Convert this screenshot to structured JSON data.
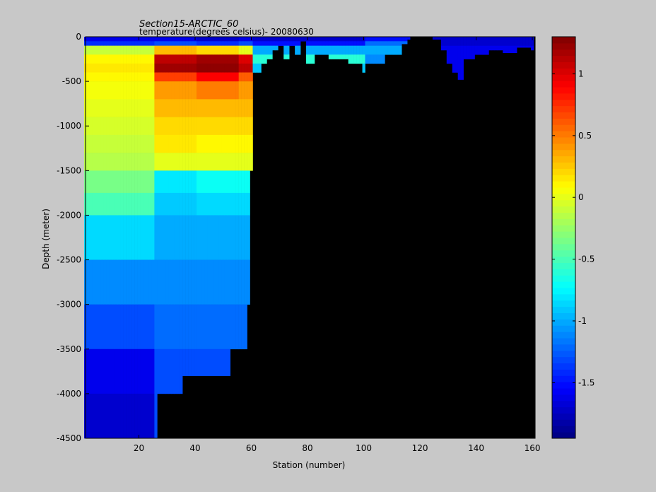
{
  "chart_data": {
    "type": "heatmap",
    "title": "Section15-ARCTIC_60",
    "subtitle": "temperature(degrees  celsius)- 20080630",
    "xlabel": "Station (number)",
    "ylabel": "Depth (meter)",
    "xlim": [
      1,
      161
    ],
    "ylim": [
      -4500,
      0
    ],
    "xticks": [
      20,
      40,
      60,
      80,
      100,
      120,
      140,
      160
    ],
    "yticks": [
      0,
      -500,
      -1000,
      -1500,
      -2000,
      -2500,
      -3000,
      -3500,
      -4000,
      -4500
    ],
    "colorbar": {
      "clim": [
        -1.95,
        1.3
      ],
      "ticks": [
        1,
        0.5,
        0,
        -0.5,
        -1,
        -1.5
      ],
      "colormap": "jet"
    },
    "seafloor_color": "#000000",
    "depth_levels": [
      -50,
      -100,
      -200,
      -300,
      -400,
      -500,
      -700,
      -900,
      -1100,
      -1300,
      -1500,
      -1750,
      -2000,
      -2500,
      -3000,
      -3500,
      -4000,
      -4500
    ],
    "bottom_depth": [
      [
        1,
        -4500
      ],
      [
        26,
        -4500
      ],
      [
        27,
        -4000
      ],
      [
        35,
        -4000
      ],
      [
        36,
        -3800
      ],
      [
        52,
        -3800
      ],
      [
        53,
        -3500
      ],
      [
        58,
        -3500
      ],
      [
        59,
        -3000
      ],
      [
        60,
        -1500
      ],
      [
        61,
        -400
      ],
      [
        64,
        -300
      ],
      [
        66,
        -250
      ],
      [
        68,
        -150
      ],
      [
        70,
        -100
      ],
      [
        72,
        -250
      ],
      [
        74,
        -100
      ],
      [
        76,
        -200
      ],
      [
        78,
        -50
      ],
      [
        80,
        -300
      ],
      [
        83,
        -200
      ],
      [
        88,
        -250
      ],
      [
        95,
        -300
      ],
      [
        100,
        -400
      ],
      [
        104,
        -350
      ],
      [
        108,
        -200
      ],
      [
        114,
        -80
      ],
      [
        116,
        -30
      ],
      [
        125,
        -30
      ],
      [
        128,
        -150
      ],
      [
        130,
        -300
      ],
      [
        132,
        -400
      ],
      [
        134,
        -480
      ],
      [
        136,
        -250
      ],
      [
        140,
        -200
      ],
      [
        145,
        -150
      ],
      [
        150,
        -180
      ],
      [
        155,
        -120
      ],
      [
        160,
        -150
      ]
    ],
    "temperature_profiles": [
      {
        "stations": [
          1,
          25
        ],
        "values": [
          -1.6,
          -1.4,
          -0.1,
          0.1,
          0.15,
          0.1,
          0.05,
          0.0,
          -0.05,
          -0.1,
          -0.15,
          -0.35,
          -0.5,
          -0.85,
          -1.1,
          -1.3,
          -1.6,
          -1.7
        ]
      },
      {
        "stations": [
          26,
          40
        ],
        "values": [
          -1.6,
          -1.3,
          0.3,
          1.1,
          1.2,
          0.7,
          0.4,
          0.3,
          0.2,
          0.15,
          0.0,
          -0.8,
          -0.9,
          -1.0,
          -1.1,
          -1.2,
          -1.3,
          -1.3
        ]
      },
      {
        "stations": [
          41,
          55
        ],
        "values": [
          -1.7,
          -1.4,
          0.2,
          1.2,
          1.25,
          0.9,
          0.5,
          0.3,
          0.2,
          0.1,
          0.0,
          -0.7,
          -0.85,
          -1.0,
          -1.1,
          -1.2,
          -1.3,
          -1.3
        ]
      },
      {
        "stations": [
          56,
          60
        ],
        "values": [
          -1.6,
          -1.3,
          0.0,
          1.0,
          1.1,
          0.6,
          0.4,
          0.3,
          0.2,
          0.1,
          0.0,
          -0.7,
          -0.85,
          -1.0,
          -1.1,
          -1.2,
          -1.3,
          -1.3
        ]
      },
      {
        "stations": [
          61,
          100
        ],
        "values": [
          -1.7,
          -1.5,
          -1.0,
          -0.6,
          -0.9,
          -1.2
        ]
      },
      {
        "stations": [
          101,
          116
        ],
        "values": [
          -1.5,
          -1.2,
          -1.0,
          -1.1
        ]
      },
      {
        "stations": [
          125,
          160
        ],
        "values": [
          -1.7,
          -1.7,
          -1.6,
          -1.6,
          -1.6,
          -1.6
        ]
      }
    ]
  }
}
